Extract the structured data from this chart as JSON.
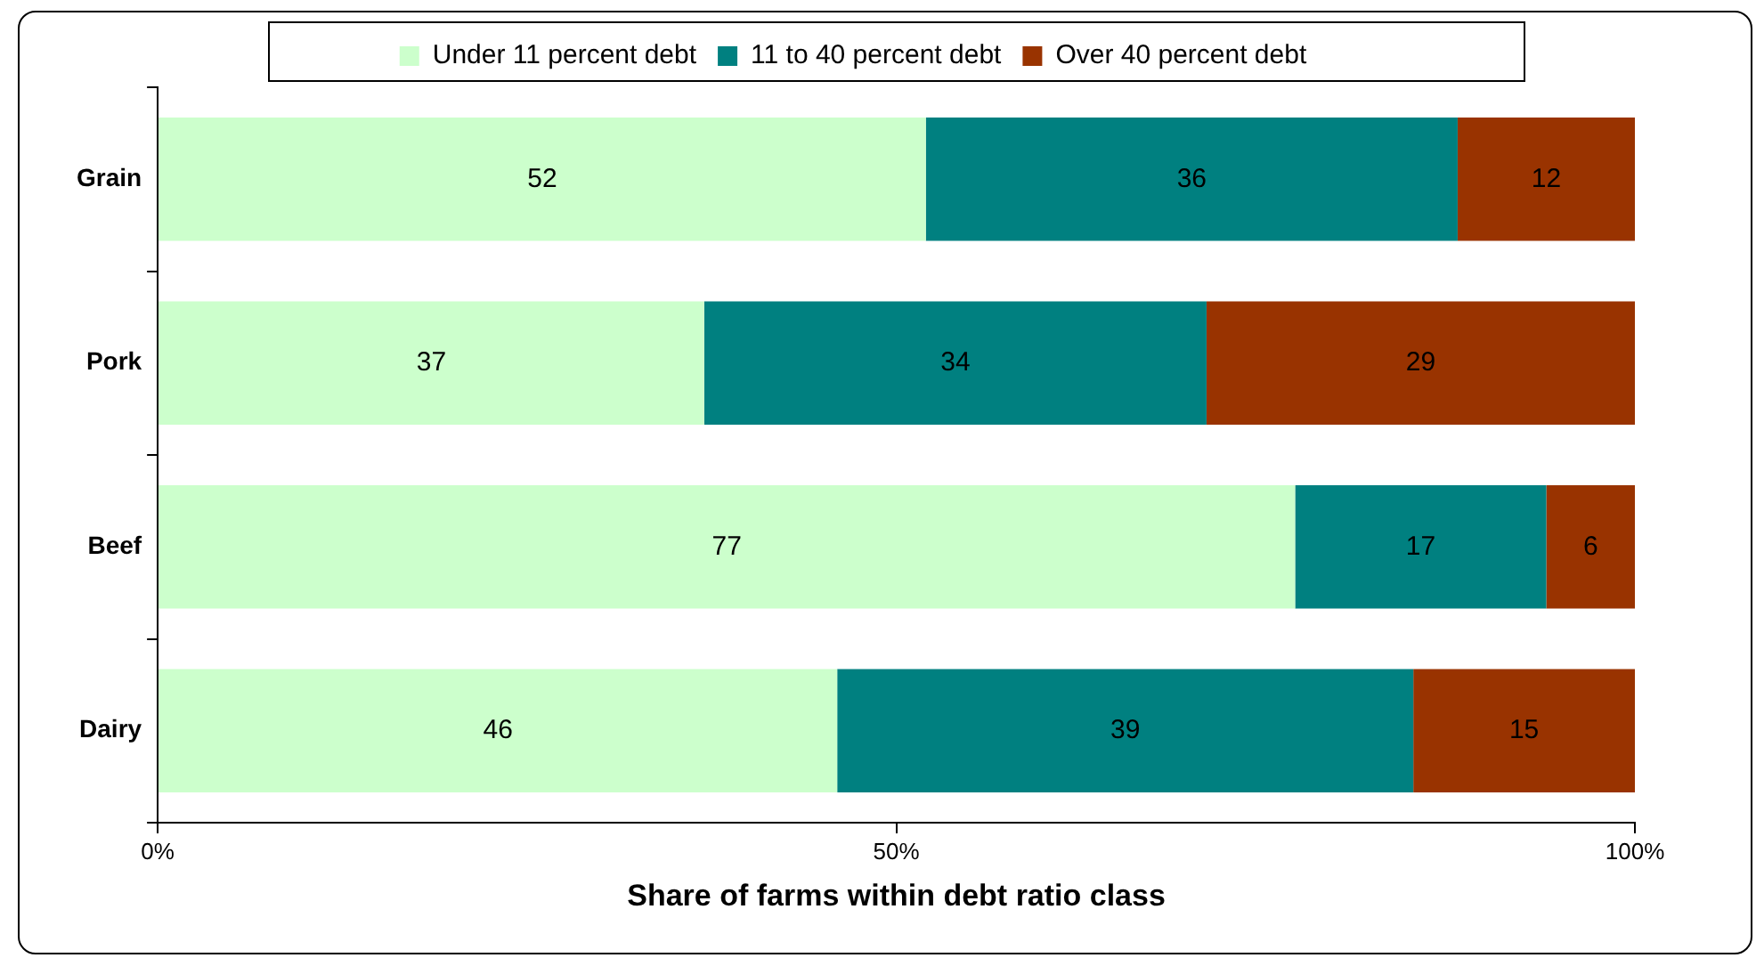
{
  "chart_data": {
    "type": "bar",
    "orientation": "horizontal",
    "stacked": true,
    "xlabel": "Share of farms within debt ratio class",
    "categories": [
      "Grain",
      "Pork",
      "Beef",
      "Dairy"
    ],
    "series": [
      {
        "name": "Under 11 percent debt",
        "color": "#ccffcc",
        "values": [
          52,
          37,
          77,
          46
        ]
      },
      {
        "name": "11 to 40 percent debt",
        "color": "#008080",
        "values": [
          36,
          34,
          17,
          39
        ]
      },
      {
        "name": "Over 40 percent debt",
        "color": "#993300",
        "values": [
          12,
          29,
          6,
          15
        ]
      }
    ],
    "xlim": [
      0,
      100
    ],
    "xticks": [
      {
        "value": 0,
        "label": "0%"
      },
      {
        "value": 50,
        "label": "50%"
      },
      {
        "value": 100,
        "label": "100%"
      }
    ],
    "grid": false,
    "legend": "top",
    "data_labels": true
  }
}
